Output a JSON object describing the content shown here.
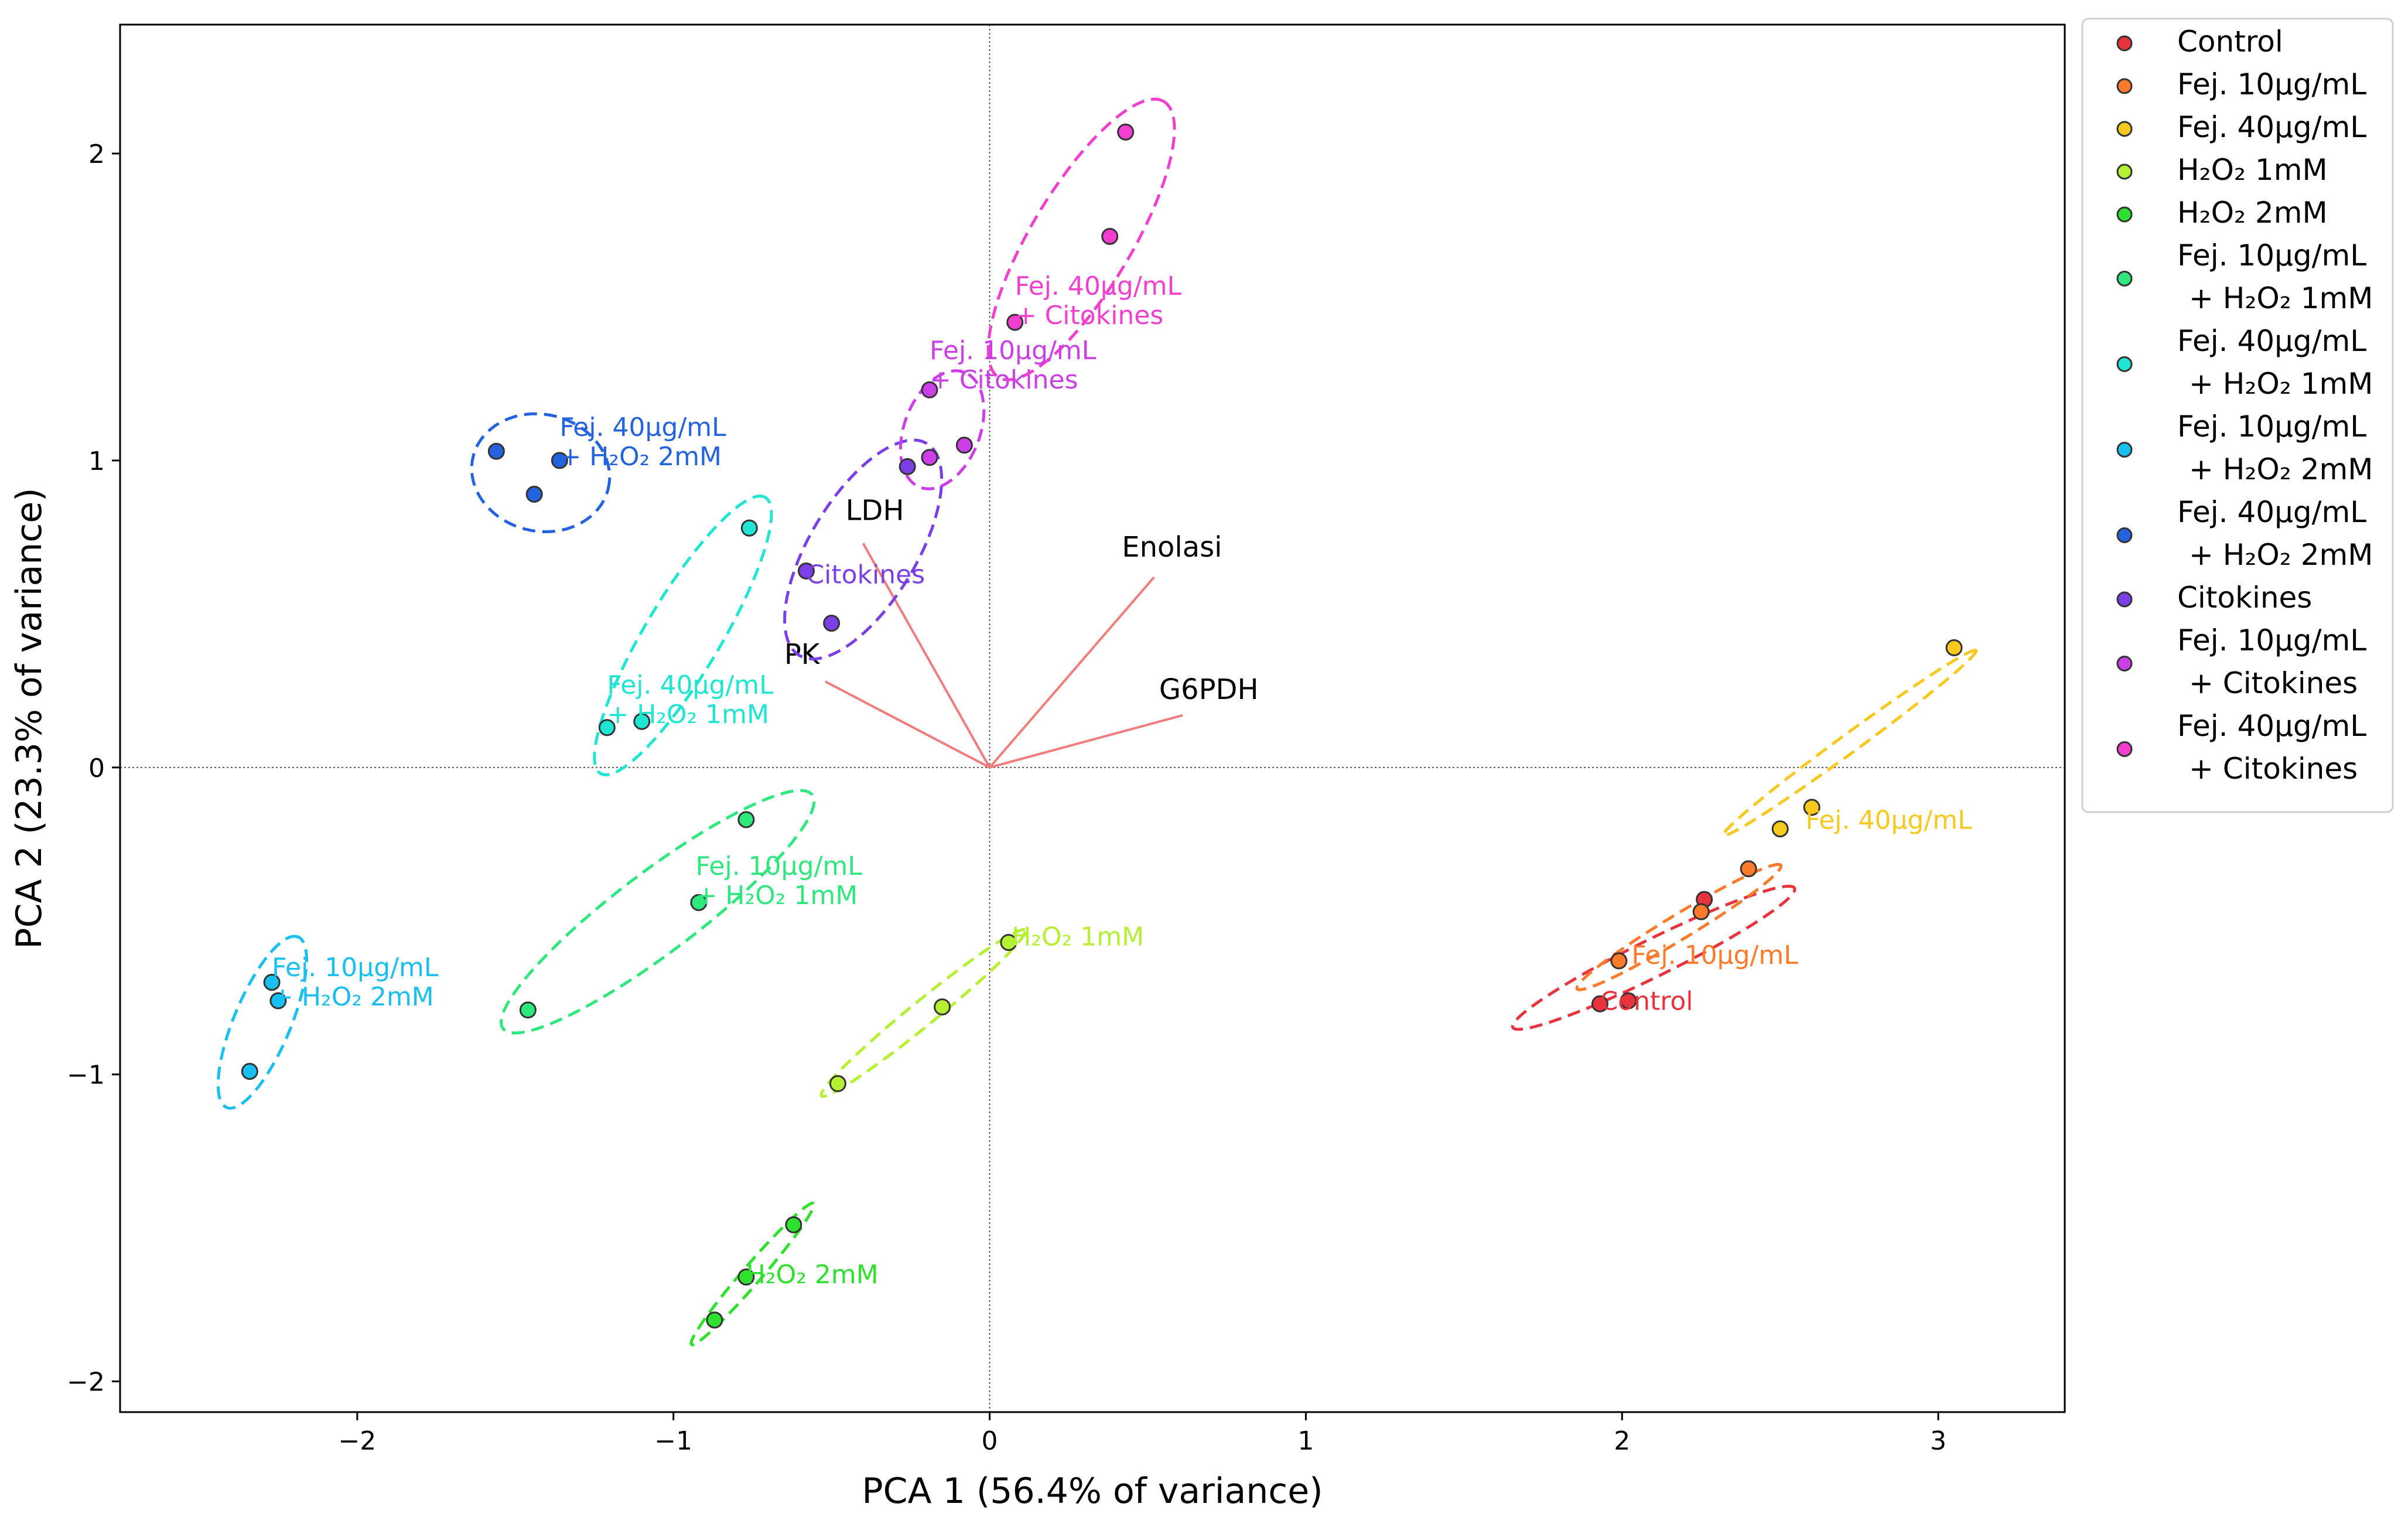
{
  "chart_data": {
    "type": "scatter",
    "title": "",
    "xlabel": "PCA 1 (56.4% of variance)",
    "ylabel": "PCA 2 (23.3% of variance)",
    "xlim": [
      -2.75,
      3.4
    ],
    "ylim": [
      -2.1,
      2.42
    ],
    "x_ticks": [
      -2,
      -1,
      0,
      1,
      2,
      3
    ],
    "y_ticks": [
      -2,
      -1,
      0,
      1,
      2
    ],
    "x_tick_labels": [
      "−2",
      "−1",
      "0",
      "1",
      "2",
      "3"
    ],
    "y_tick_labels": [
      "−2",
      "−1",
      "0",
      "1",
      "2"
    ],
    "grid": false,
    "reference_lines": [
      {
        "axis": "x",
        "value": 0
      },
      {
        "axis": "y",
        "value": 0
      }
    ],
    "legend_position": "outside-right",
    "series": [
      {
        "name": "Control",
        "legend": [
          "Control"
        ],
        "label_lines": [
          "Control"
        ],
        "color": "#e8323c",
        "points": [
          [
            1.93,
            -0.77
          ],
          [
            2.02,
            -0.76
          ],
          [
            2.26,
            -0.43
          ]
        ],
        "ellipse": {
          "cx": 2.1,
          "cy": -0.62,
          "rx": 0.5,
          "ry": 0.06,
          "angle": 27
        }
      },
      {
        "name": "Fej. 10µg/mL",
        "legend": [
          "Fej. 10µg/mL"
        ],
        "label_lines": [
          "Fej. 10µg/mL"
        ],
        "color": "#ff7a2a",
        "points": [
          [
            1.99,
            -0.63
          ],
          [
            2.25,
            -0.47
          ],
          [
            2.4,
            -0.33
          ]
        ],
        "ellipse": {
          "cx": 2.18,
          "cy": -0.52,
          "rx": 0.38,
          "ry": 0.04,
          "angle": 32
        }
      },
      {
        "name": "Fej. 40µg/mL",
        "legend": [
          "Fej. 40µg/mL"
        ],
        "label_lines": [
          "Fej. 40µg/mL"
        ],
        "color": "#f7c81e",
        "points": [
          [
            2.5,
            -0.2
          ],
          [
            2.6,
            -0.13
          ],
          [
            3.05,
            0.39
          ]
        ],
        "ellipse": {
          "cx": 2.72,
          "cy": 0.08,
          "rx": 0.5,
          "ry": 0.03,
          "angle": 37
        }
      },
      {
        "name": "H₂O₂ 1mM",
        "legend": [
          "H₂O₂ 1mM"
        ],
        "label_lines": [
          "H₂O₂ 1mM"
        ],
        "color": "#b5f032",
        "points": [
          [
            -0.48,
            -1.03
          ],
          [
            -0.15,
            -0.78
          ],
          [
            0.06,
            -0.57
          ]
        ],
        "ellipse": {
          "cx": -0.21,
          "cy": -0.8,
          "rx": 0.42,
          "ry": 0.04,
          "angle": 40
        }
      },
      {
        "name": "H₂O₂ 2mM",
        "legend": [
          "H₂O₂ 2mM"
        ],
        "label_lines": [
          "H₂O₂ 2mM"
        ],
        "color": "#2fe02f",
        "points": [
          [
            -0.87,
            -1.8
          ],
          [
            -0.77,
            -1.66
          ],
          [
            -0.62,
            -1.49
          ]
        ],
        "ellipse": {
          "cx": -0.75,
          "cy": -1.65,
          "rx": 0.3,
          "ry": 0.03,
          "angle": 50
        }
      },
      {
        "name": "Fej. 10µg/mL + H₂O₂ 1mM",
        "legend": [
          "Fej. 10µg/mL",
          "+ H₂O₂ 1mM"
        ],
        "label_lines": [
          "Fej. 10µg/mL",
          "+ H₂O₂ 1mM"
        ],
        "color": "#2ee87e",
        "points": [
          [
            -1.46,
            -0.79
          ],
          [
            -0.92,
            -0.44
          ],
          [
            -0.77,
            -0.17
          ]
        ],
        "ellipse": {
          "cx": -1.05,
          "cy": -0.47,
          "rx": 0.62,
          "ry": 0.13,
          "angle": 38
        }
      },
      {
        "name": "Fej. 40µg/mL + H₂O₂ 1mM",
        "legend": [
          "Fej. 40µg/mL",
          "+ H₂O₂ 1mM"
        ],
        "label_lines": [
          "Fej. 40µg/mL",
          "+ H₂O₂ 1mM"
        ],
        "color": "#1fe6d2",
        "points": [
          [
            -1.21,
            0.13
          ],
          [
            -1.1,
            0.15
          ],
          [
            -0.76,
            0.78
          ]
        ],
        "ellipse": {
          "cx": -0.97,
          "cy": 0.43,
          "rx": 0.52,
          "ry": 0.12,
          "angle": 60
        }
      },
      {
        "name": "Fej. 10µg/mL + H₂O₂ 2mM",
        "legend": [
          "Fej. 10µg/mL",
          "+ H₂O₂ 2mM"
        ],
        "label_lines": [
          "Fej. 10µg/mL",
          "+ H₂O₂ 2mM"
        ],
        "color": "#18bff0",
        "points": [
          [
            -2.34,
            -0.99
          ],
          [
            -2.27,
            -0.7
          ],
          [
            -2.25,
            -0.76
          ]
        ],
        "ellipse": {
          "cx": -2.3,
          "cy": -0.83,
          "rx": 0.3,
          "ry": 0.09,
          "angle": 68
        }
      },
      {
        "name": "Fej. 40µg/mL + H₂O₂ 2mM",
        "legend": [
          "Fej. 40µg/mL",
          "+ H₂O₂ 2mM"
        ],
        "label_lines": [
          "Fej. 40µg/mL",
          "+ H₂O₂ 2mM"
        ],
        "color": "#2463e0",
        "points": [
          [
            -1.56,
            1.03
          ],
          [
            -1.44,
            0.89
          ],
          [
            -1.36,
            1.0
          ]
        ],
        "ellipse": {
          "cx": -1.42,
          "cy": 0.96,
          "rx": 0.22,
          "ry": 0.19,
          "angle": -15
        }
      },
      {
        "name": "Citokines",
        "legend": [
          "Citokines"
        ],
        "label_lines": [
          "Citokines"
        ],
        "color": "#7b3fe8",
        "points": [
          [
            -0.58,
            0.64
          ],
          [
            -0.5,
            0.47
          ],
          [
            -0.26,
            0.98
          ]
        ],
        "ellipse": {
          "cx": -0.4,
          "cy": 0.71,
          "rx": 0.4,
          "ry": 0.17,
          "angle": 60
        }
      },
      {
        "name": "Fej. 10µg/mL + Citokines",
        "legend": [
          "Fej. 10µg/mL",
          "+ Citokines"
        ],
        "label_lines": [
          "Fej. 10µg/mL",
          "+ Citokines"
        ],
        "color": "#cc3fe8",
        "points": [
          [
            -0.19,
            1.23
          ],
          [
            -0.19,
            1.01
          ],
          [
            -0.08,
            1.05
          ]
        ],
        "ellipse": {
          "cx": -0.15,
          "cy": 1.1,
          "rx": 0.2,
          "ry": 0.12,
          "angle": 70
        }
      },
      {
        "name": "Fej. 40µg/mL + Citokines",
        "legend": [
          "Fej. 40µg/mL",
          "+ Citokines"
        ],
        "label_lines": [
          "Fej. 40µg/mL",
          "+ Citokines"
        ],
        "color": "#f23fcf",
        "points": [
          [
            0.08,
            1.45
          ],
          [
            0.38,
            1.73
          ],
          [
            0.43,
            2.07
          ]
        ],
        "ellipse": {
          "cx": 0.29,
          "cy": 1.72,
          "rx": 0.52,
          "ry": 0.16,
          "angle": 60
        }
      }
    ],
    "loadings": [
      {
        "name": "LDH",
        "x": -0.4,
        "y": 0.73
      },
      {
        "name": "Enolasi",
        "x": 0.52,
        "y": 0.62
      },
      {
        "name": "PK",
        "x": -0.52,
        "y": 0.28
      },
      {
        "name": "G6PDH",
        "x": 0.61,
        "y": 0.17
      }
    ],
    "loading_color": "#f27c7c"
  }
}
